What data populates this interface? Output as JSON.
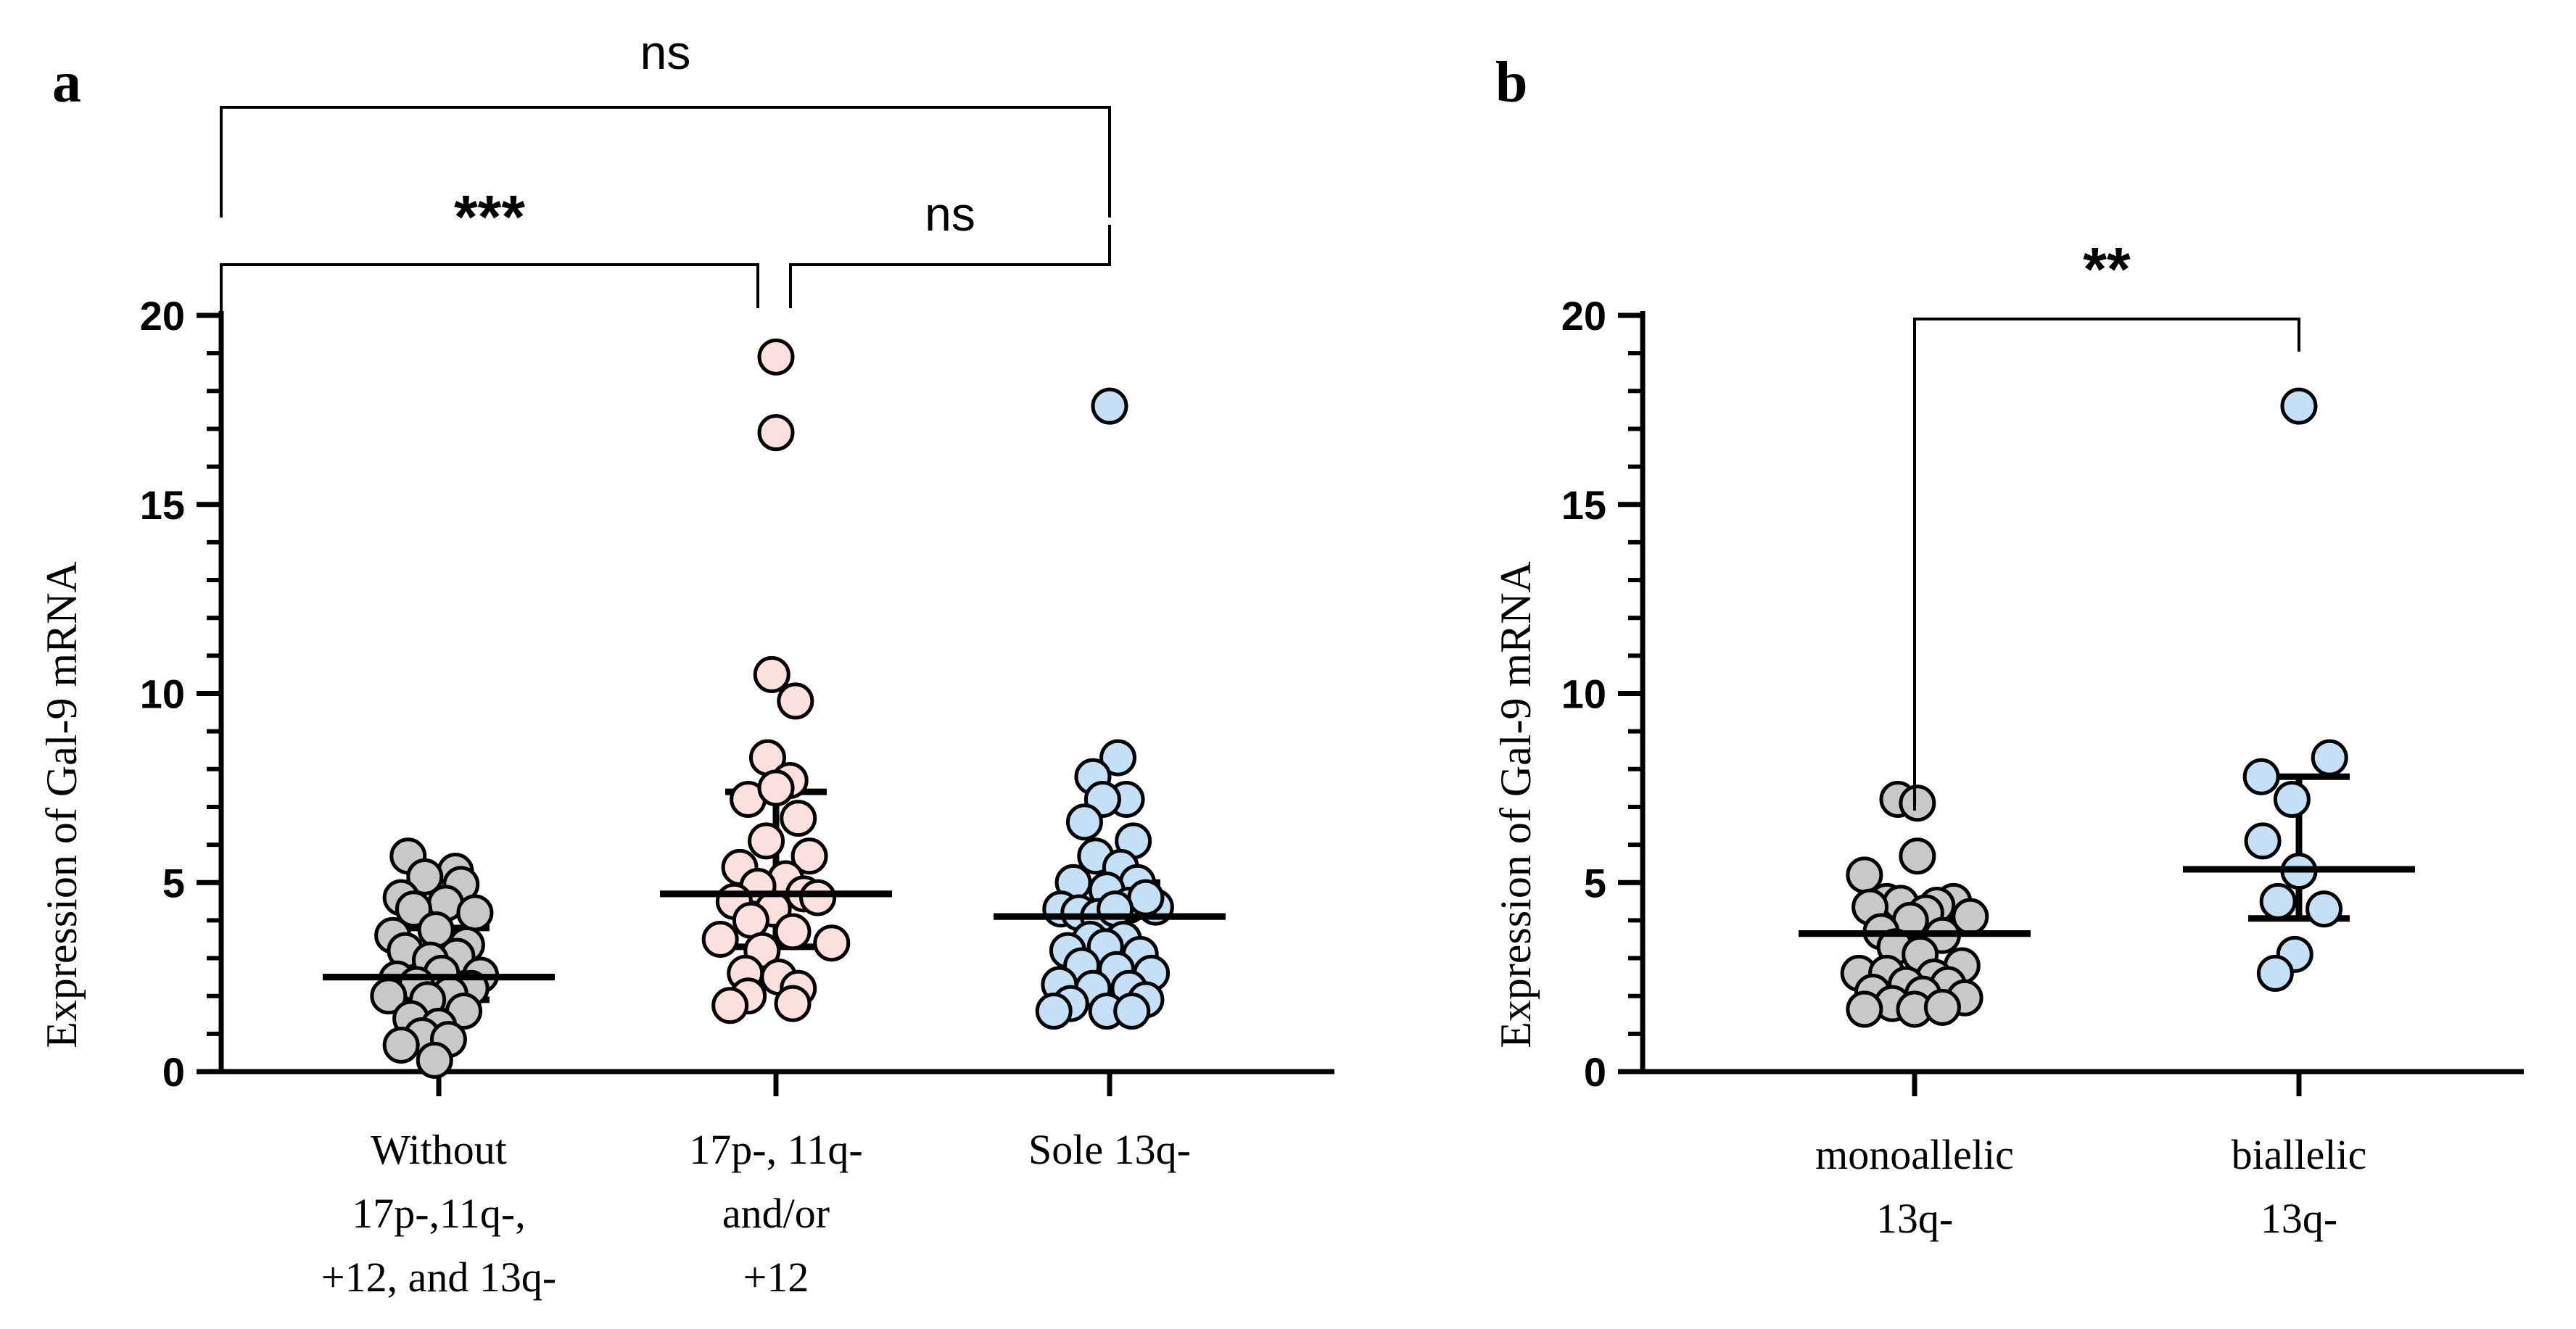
{
  "chart_data": [
    {
      "panel": "a",
      "type": "scatter",
      "ylabel": "Expression of Gal-9 mRNA",
      "ylim": [
        0,
        20
      ],
      "yticks": [
        "0",
        "5",
        "10",
        "15",
        "20"
      ],
      "categories": [
        [
          "Without",
          "17p-,11q-,",
          "+12, and 13q-"
        ],
        [
          "17p-, 11q-",
          "and/or",
          "+12"
        ],
        [
          "Sole 13q-"
        ]
      ],
      "series": [
        {
          "name": "Without 17p-,11q-, +12, and 13q-",
          "color": "#c8c8c8",
          "median": 2.5,
          "q1": 1.9,
          "q3": 3.8,
          "points": [
            {
              "x": -0.22,
              "y": 5.7
            },
            {
              "x": 0.12,
              "y": 5.3
            },
            {
              "x": -0.1,
              "y": 5.15
            },
            {
              "x": 0.16,
              "y": 4.95
            },
            {
              "x": -0.27,
              "y": 4.6
            },
            {
              "x": 0.05,
              "y": 4.45
            },
            {
              "x": -0.18,
              "y": 4.3
            },
            {
              "x": 0.26,
              "y": 4.2
            },
            {
              "x": -0.33,
              "y": 3.6
            },
            {
              "x": -0.02,
              "y": 3.75
            },
            {
              "x": 0.2,
              "y": 3.35
            },
            {
              "x": -0.24,
              "y": 3.2
            },
            {
              "x": 0.13,
              "y": 3.05
            },
            {
              "x": -0.06,
              "y": 2.95
            },
            {
              "x": 0.3,
              "y": 2.55
            },
            {
              "x": -0.3,
              "y": 2.45
            },
            {
              "x": 0.02,
              "y": 2.6
            },
            {
              "x": -0.16,
              "y": 2.3
            },
            {
              "x": 0.23,
              "y": 2.2
            },
            {
              "x": -0.36,
              "y": 2.0
            },
            {
              "x": 0.08,
              "y": 2.05
            },
            {
              "x": -0.08,
              "y": 1.9
            },
            {
              "x": 0.18,
              "y": 1.6
            },
            {
              "x": -0.2,
              "y": 1.4
            },
            {
              "x": 0.0,
              "y": 1.2
            },
            {
              "x": -0.12,
              "y": 0.95
            },
            {
              "x": -0.27,
              "y": 0.7
            },
            {
              "x": 0.07,
              "y": 0.85
            },
            {
              "x": -0.03,
              "y": 0.3
            }
          ]
        },
        {
          "name": "17p-, 11q- and/or +12",
          "color": "#fbe0dd",
          "median": 4.7,
          "q1": 3.3,
          "q3": 7.4,
          "points": [
            {
              "x": 0.0,
              "y": 18.9
            },
            {
              "x": 0.0,
              "y": 16.9
            },
            {
              "x": -0.03,
              "y": 10.5
            },
            {
              "x": 0.14,
              "y": 9.8
            },
            {
              "x": -0.06,
              "y": 8.3
            },
            {
              "x": 0.1,
              "y": 7.7
            },
            {
              "x": -0.2,
              "y": 7.2
            },
            {
              "x": 0.0,
              "y": 7.5
            },
            {
              "x": 0.16,
              "y": 6.7
            },
            {
              "x": -0.07,
              "y": 6.1
            },
            {
              "x": 0.24,
              "y": 5.7
            },
            {
              "x": -0.26,
              "y": 5.4
            },
            {
              "x": 0.07,
              "y": 5.1
            },
            {
              "x": -0.13,
              "y": 4.9
            },
            {
              "x": 0.2,
              "y": 4.7
            },
            {
              "x": -0.3,
              "y": 4.5
            },
            {
              "x": 0.3,
              "y": 4.6
            },
            {
              "x": -0.02,
              "y": 4.3
            },
            {
              "x": -0.18,
              "y": 4.0
            },
            {
              "x": 0.12,
              "y": 3.7
            },
            {
              "x": -0.4,
              "y": 3.5
            },
            {
              "x": 0.4,
              "y": 3.4
            },
            {
              "x": -0.1,
              "y": 3.2
            },
            {
              "x": 0.02,
              "y": 2.5
            },
            {
              "x": -0.22,
              "y": 2.6
            },
            {
              "x": 0.16,
              "y": 2.2
            },
            {
              "x": -0.2,
              "y": 2.0
            },
            {
              "x": 0.12,
              "y": 1.8
            },
            {
              "x": -0.33,
              "y": 1.75
            }
          ]
        },
        {
          "name": "Sole 13q-",
          "color": "#c5dff6",
          "median": 4.1,
          "q1": 2.6,
          "q3": 5.0,
          "points": [
            {
              "x": 0.0,
              "y": 17.6
            },
            {
              "x": 0.06,
              "y": 8.3
            },
            {
              "x": -0.12,
              "y": 7.8
            },
            {
              "x": 0.12,
              "y": 7.2
            },
            {
              "x": -0.05,
              "y": 7.2
            },
            {
              "x": -0.18,
              "y": 6.6
            },
            {
              "x": 0.17,
              "y": 6.1
            },
            {
              "x": -0.1,
              "y": 5.7
            },
            {
              "x": 0.08,
              "y": 5.4
            },
            {
              "x": -0.26,
              "y": 5.0
            },
            {
              "x": 0.2,
              "y": 5.0
            },
            {
              "x": -0.02,
              "y": 4.8
            },
            {
              "x": -0.35,
              "y": 4.3
            },
            {
              "x": 0.33,
              "y": 4.35
            },
            {
              "x": -0.22,
              "y": 4.2
            },
            {
              "x": 0.14,
              "y": 4.4
            },
            {
              "x": -0.08,
              "y": 4.1
            },
            {
              "x": 0.26,
              "y": 4.6
            },
            {
              "x": 0.04,
              "y": 4.3
            },
            {
              "x": -0.14,
              "y": 3.5
            },
            {
              "x": 0.1,
              "y": 3.5
            },
            {
              "x": -0.3,
              "y": 3.2
            },
            {
              "x": -0.03,
              "y": 3.3
            },
            {
              "x": 0.22,
              "y": 3.1
            },
            {
              "x": -0.2,
              "y": 2.8
            },
            {
              "x": 0.05,
              "y": 2.7
            },
            {
              "x": 0.3,
              "y": 2.6
            },
            {
              "x": -0.36,
              "y": 2.3
            },
            {
              "x": -0.12,
              "y": 2.2
            },
            {
              "x": 0.14,
              "y": 2.2
            },
            {
              "x": -0.28,
              "y": 1.8
            },
            {
              "x": 0.26,
              "y": 1.9
            },
            {
              "x": -0.02,
              "y": 1.6
            },
            {
              "x": 0.16,
              "y": 1.6
            },
            {
              "x": -0.4,
              "y": 1.6
            }
          ]
        }
      ],
      "comparisons": [
        {
          "from": 0,
          "to": 2,
          "label": "ns"
        },
        {
          "from": 0,
          "to": 1,
          "label": "***"
        },
        {
          "from": 1,
          "to": 2,
          "label": "ns"
        }
      ]
    },
    {
      "panel": "b",
      "type": "scatter",
      "ylabel": "Expression of Gal-9 mRNA",
      "ylim": [
        0,
        20
      ],
      "yticks": [
        "0",
        "5",
        "10",
        "15",
        "20"
      ],
      "categories": [
        [
          "monoallelic",
          "13q-"
        ],
        [
          "biallelic",
          "13q-"
        ]
      ],
      "series": [
        {
          "name": "monoallelic 13q-",
          "color": "#c8c8c8",
          "median": 3.65,
          "q1": 2.35,
          "q3": 4.35,
          "points": [
            {
              "x": -0.12,
              "y": 7.2
            },
            {
              "x": 0.02,
              "y": 7.1
            },
            {
              "x": 0.02,
              "y": 5.7
            },
            {
              "x": -0.36,
              "y": 5.2
            },
            {
              "x": 0.28,
              "y": 4.5
            },
            {
              "x": -0.2,
              "y": 4.5
            },
            {
              "x": -0.1,
              "y": 4.45
            },
            {
              "x": 0.16,
              "y": 4.4
            },
            {
              "x": -0.32,
              "y": 4.35
            },
            {
              "x": 0.08,
              "y": 4.2
            },
            {
              "x": 0.4,
              "y": 4.1
            },
            {
              "x": -0.03,
              "y": 4.0
            },
            {
              "x": -0.24,
              "y": 3.7
            },
            {
              "x": 0.2,
              "y": 3.6
            },
            {
              "x": -0.14,
              "y": 3.3
            },
            {
              "x": 0.04,
              "y": 3.1
            },
            {
              "x": 0.34,
              "y": 2.8
            },
            {
              "x": -0.4,
              "y": 2.6
            },
            {
              "x": -0.2,
              "y": 2.6
            },
            {
              "x": 0.14,
              "y": 2.5
            },
            {
              "x": -0.06,
              "y": 2.3
            },
            {
              "x": 0.24,
              "y": 2.3
            },
            {
              "x": -0.3,
              "y": 2.1
            },
            {
              "x": 0.06,
              "y": 2.05
            },
            {
              "x": 0.36,
              "y": 1.95
            },
            {
              "x": -0.16,
              "y": 1.8
            },
            {
              "x": -0.36,
              "y": 1.65
            },
            {
              "x": 0.0,
              "y": 1.65
            },
            {
              "x": 0.2,
              "y": 1.7
            }
          ]
        },
        {
          "name": "biallelic 13q-",
          "color": "#c5dff6",
          "median": 5.35,
          "q1": 4.05,
          "q3": 7.8,
          "points": [
            {
              "x": 0.0,
              "y": 17.6
            },
            {
              "x": 0.22,
              "y": 8.3
            },
            {
              "x": -0.27,
              "y": 7.8
            },
            {
              "x": -0.05,
              "y": 7.2
            },
            {
              "x": -0.26,
              "y": 6.1
            },
            {
              "x": 0.0,
              "y": 5.3
            },
            {
              "x": -0.15,
              "y": 4.5
            },
            {
              "x": 0.18,
              "y": 4.3
            },
            {
              "x": -0.03,
              "y": 3.1
            },
            {
              "x": -0.17,
              "y": 2.6
            }
          ]
        }
      ],
      "comparisons": [
        {
          "from": 0,
          "to": 1,
          "label": "**"
        }
      ]
    }
  ]
}
